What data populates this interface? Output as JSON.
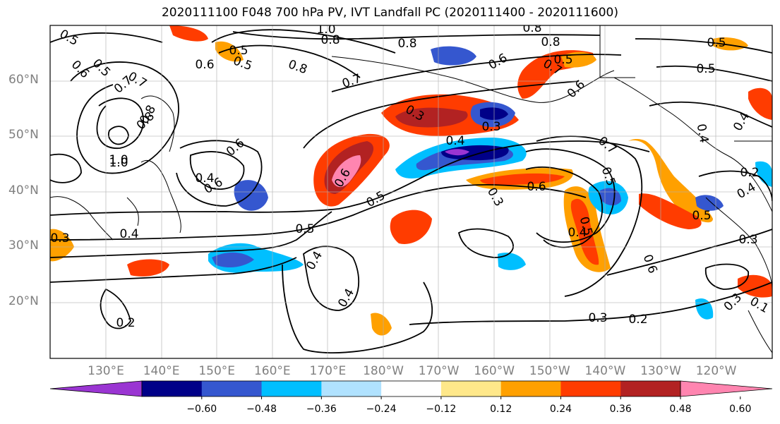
{
  "title": "2020111100 F048 700 hPa PV, IVT Landfall PC (2020111400 - 2020111600)",
  "lat_labels": [
    "60°N",
    "50°N",
    "40°N",
    "30°N",
    "20°N"
  ],
  "lon_labels": [
    "130°E",
    "140°E",
    "150°E",
    "160°E",
    "170°E",
    "180°W",
    "170°W",
    "160°W",
    "150°W",
    "140°W",
    "130°W",
    "120°W"
  ],
  "colorbar": {
    "ticks": [
      "−0.60",
      "−0.48",
      "−0.36",
      "−0.24",
      "−0.12",
      "0.12",
      "0.24",
      "0.36",
      "0.48",
      "0.60"
    ],
    "colors": [
      "#9a35d2",
      "#000088",
      "#3557cf",
      "#00bfff",
      "#b0e2ff",
      "#ffffff",
      "#ffe88a",
      "#ffa000",
      "#ff3c00",
      "#b22222",
      "#ff85b0"
    ]
  },
  "contour_labels": [
    "0.5",
    "0.5",
    "0.6",
    "0.5",
    "0.5",
    "0.6",
    "0.7",
    "1.0",
    "0.8",
    "0.8",
    "0.7",
    "0.8",
    "1.0",
    "0.6",
    "0.8",
    "0.8",
    "0.5",
    "0.8",
    "0.5",
    "0.6",
    "0.7",
    "0.3",
    "0.4",
    "0.6",
    "0.7",
    "0.7",
    "0.5",
    "0.8",
    "1.0",
    "0.6",
    "0.4",
    "0.6",
    "0.5",
    "0.5",
    "0.4",
    "0.3",
    "0.4",
    "0.4",
    "0.4",
    "0.5",
    "0.3",
    "0.3",
    "0.2",
    "0.2",
    "0.4",
    "0.5",
    "0.6",
    "0.3",
    "0.4",
    "0.3",
    "0.5",
    "0.4",
    "0.1",
    "0.2",
    "0.6",
    "0.3"
  ]
}
